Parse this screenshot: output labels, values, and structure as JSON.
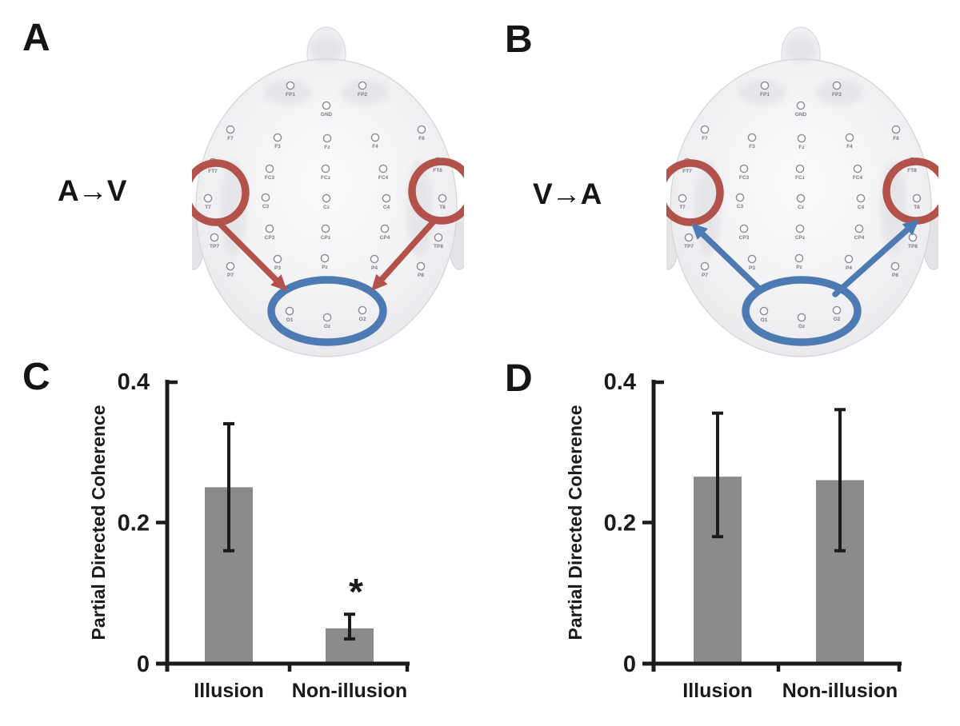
{
  "figure": {
    "background": "#ffffff",
    "text_color": "#1b1b1b",
    "panels": [
      {
        "id": "A",
        "label": "A",
        "relation": "A→V"
      },
      {
        "id": "B",
        "label": "B",
        "relation": "V→A"
      },
      {
        "id": "C",
        "label": "C"
      },
      {
        "id": "D",
        "label": "D"
      }
    ]
  },
  "head_diagram": {
    "electrode_labels": [
      "FP1",
      "FP2",
      "GND",
      "F7",
      "F3",
      "Fz",
      "F4",
      "F8",
      "FT7",
      "FC3",
      "FCz",
      "FC4",
      "FT8",
      "T7",
      "C3",
      "Cz",
      "C4",
      "T8",
      "TP7",
      "CP3",
      "CPz",
      "CP4",
      "TP8",
      "P7",
      "P3",
      "Pz",
      "P4",
      "P8",
      "O1",
      "Oz",
      "O2"
    ],
    "highlighted_temporal_electrodes": [
      "T7",
      "T8"
    ],
    "highlighted_occipital_electrodes": [
      "O1",
      "Oz",
      "O2"
    ],
    "temporal_highlight_color": "#b2524a",
    "occipital_highlight_color": "#4d7ab3",
    "panel_a_arrow_color": "#b2524a",
    "panel_b_arrow_color": "#4d7ab3"
  },
  "chart_data": [
    {
      "panel": "C",
      "type": "bar",
      "title": "",
      "ylabel": "Partial Directed Coherence",
      "xlabel": "",
      "categories": [
        "Illusion",
        "Non-illusion"
      ],
      "values": [
        0.25,
        0.05
      ],
      "error_low": [
        0.16,
        0.035
      ],
      "error_high": [
        0.34,
        0.07
      ],
      "significance": [
        "",
        "*"
      ],
      "ylim": [
        0,
        0.4
      ],
      "yticks": [
        0,
        0.2,
        0.4
      ],
      "ytick_labels": [
        "0",
        "0.2",
        "0.4"
      ],
      "bar_color": "#8b8b8b",
      "axis_color": "#1b1b1b",
      "grid": false,
      "legend": false
    },
    {
      "panel": "D",
      "type": "bar",
      "title": "",
      "ylabel": "Partial Directed Coherence",
      "xlabel": "",
      "categories": [
        "Illusion",
        "Non-illusion"
      ],
      "values": [
        0.265,
        0.26
      ],
      "error_low": [
        0.18,
        0.16
      ],
      "error_high": [
        0.355,
        0.36
      ],
      "significance": [
        "",
        ""
      ],
      "ylim": [
        0,
        0.4
      ],
      "yticks": [
        0,
        0.2,
        0.4
      ],
      "ytick_labels": [
        "0",
        "0.2",
        "0.4"
      ],
      "bar_color": "#8b8b8b",
      "axis_color": "#1b1b1b",
      "grid": false,
      "legend": false
    }
  ]
}
